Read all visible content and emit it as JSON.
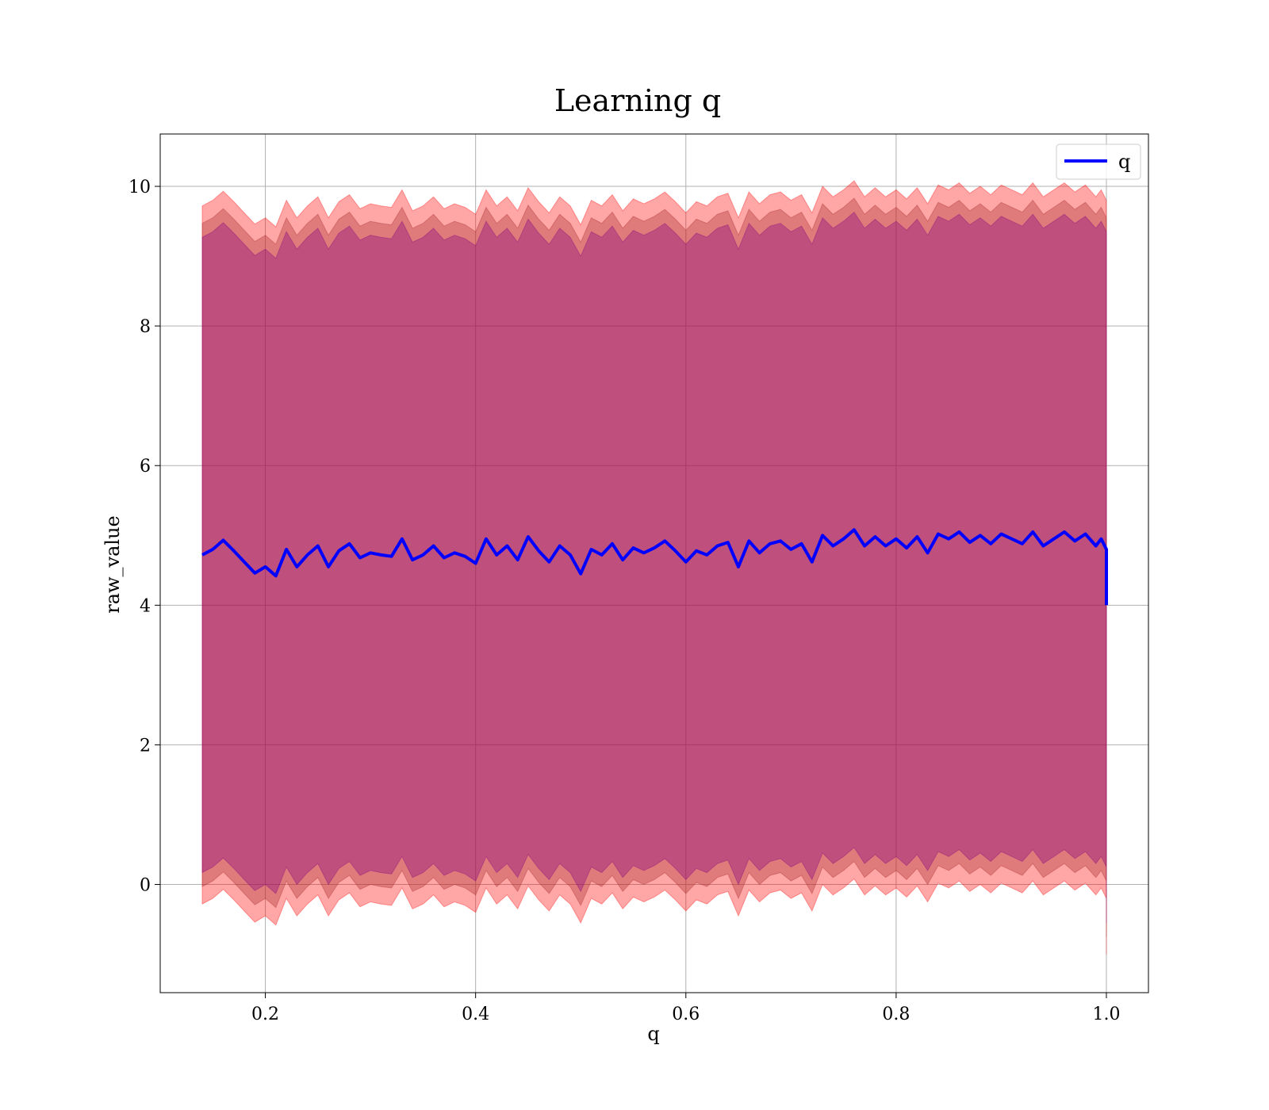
{
  "chart_data": {
    "type": "line",
    "title": "Learning q",
    "xlabel": "q",
    "ylabel": "raw_value",
    "xlim": [
      0.1,
      1.04
    ],
    "ylim": [
      -1.55,
      10.75
    ],
    "xticks": [
      {
        "value": 0.2,
        "label": "0.2"
      },
      {
        "value": 0.4,
        "label": "0.4"
      },
      {
        "value": 0.6,
        "label": "0.6"
      },
      {
        "value": 0.8,
        "label": "0.8"
      },
      {
        "value": 1.0,
        "label": "1.0"
      }
    ],
    "yticks": [
      {
        "value": 0,
        "label": "0"
      },
      {
        "value": 2,
        "label": "2"
      },
      {
        "value": 4,
        "label": "4"
      },
      {
        "value": 6,
        "label": "6"
      },
      {
        "value": 8,
        "label": "8"
      },
      {
        "value": 10,
        "label": "10"
      }
    ],
    "grid": true,
    "legend": {
      "placement": "top-right",
      "entries": [
        {
          "label": "q",
          "color": "#0000ff"
        }
      ]
    },
    "series": [
      {
        "name": "q",
        "color": "#0000ff",
        "x": [
          0.14,
          0.15,
          0.16,
          0.17,
          0.18,
          0.19,
          0.2,
          0.21,
          0.22,
          0.23,
          0.24,
          0.25,
          0.26,
          0.27,
          0.28,
          0.29,
          0.3,
          0.31,
          0.32,
          0.33,
          0.34,
          0.35,
          0.36,
          0.37,
          0.38,
          0.39,
          0.4,
          0.41,
          0.42,
          0.43,
          0.44,
          0.45,
          0.46,
          0.47,
          0.48,
          0.49,
          0.5,
          0.51,
          0.52,
          0.53,
          0.54,
          0.55,
          0.56,
          0.57,
          0.58,
          0.59,
          0.6,
          0.61,
          0.62,
          0.63,
          0.64,
          0.65,
          0.66,
          0.67,
          0.68,
          0.69,
          0.7,
          0.71,
          0.72,
          0.73,
          0.74,
          0.75,
          0.76,
          0.77,
          0.78,
          0.79,
          0.8,
          0.81,
          0.82,
          0.83,
          0.84,
          0.85,
          0.86,
          0.87,
          0.88,
          0.89,
          0.9,
          0.91,
          0.92,
          0.93,
          0.94,
          0.95,
          0.96,
          0.97,
          0.98,
          0.99,
          0.995,
          1.0,
          1.0
        ],
        "y": [
          4.72,
          4.8,
          4.93,
          4.78,
          4.62,
          4.46,
          4.55,
          4.42,
          4.8,
          4.55,
          4.72,
          4.85,
          4.55,
          4.78,
          4.88,
          4.68,
          4.75,
          4.72,
          4.7,
          4.95,
          4.65,
          4.72,
          4.85,
          4.68,
          4.75,
          4.7,
          4.6,
          4.95,
          4.72,
          4.85,
          4.65,
          4.98,
          4.78,
          4.62,
          4.85,
          4.72,
          4.45,
          4.8,
          4.72,
          4.88,
          4.65,
          4.82,
          4.75,
          4.82,
          4.92,
          4.78,
          4.62,
          4.78,
          4.72,
          4.85,
          4.9,
          4.55,
          4.92,
          4.75,
          4.88,
          4.92,
          4.8,
          4.88,
          4.62,
          5.0,
          4.85,
          4.95,
          5.08,
          4.85,
          4.98,
          4.85,
          4.95,
          4.82,
          4.98,
          4.75,
          5.02,
          4.95,
          5.05,
          4.9,
          5.0,
          4.88,
          5.02,
          4.95,
          4.88,
          5.05,
          4.85,
          4.95,
          5.05,
          4.92,
          5.02,
          4.85,
          4.95,
          4.8,
          4.0
        ]
      }
    ],
    "bands": [
      {
        "color": "#ff0000",
        "lower_offset": -5.0,
        "upper_offset": 5.0
      },
      {
        "color": "#a52a2a",
        "lower_offset": -4.75,
        "upper_offset": 4.75
      },
      {
        "color": "#800080",
        "lower_offset": -4.55,
        "upper_offset": 4.55
      }
    ]
  }
}
